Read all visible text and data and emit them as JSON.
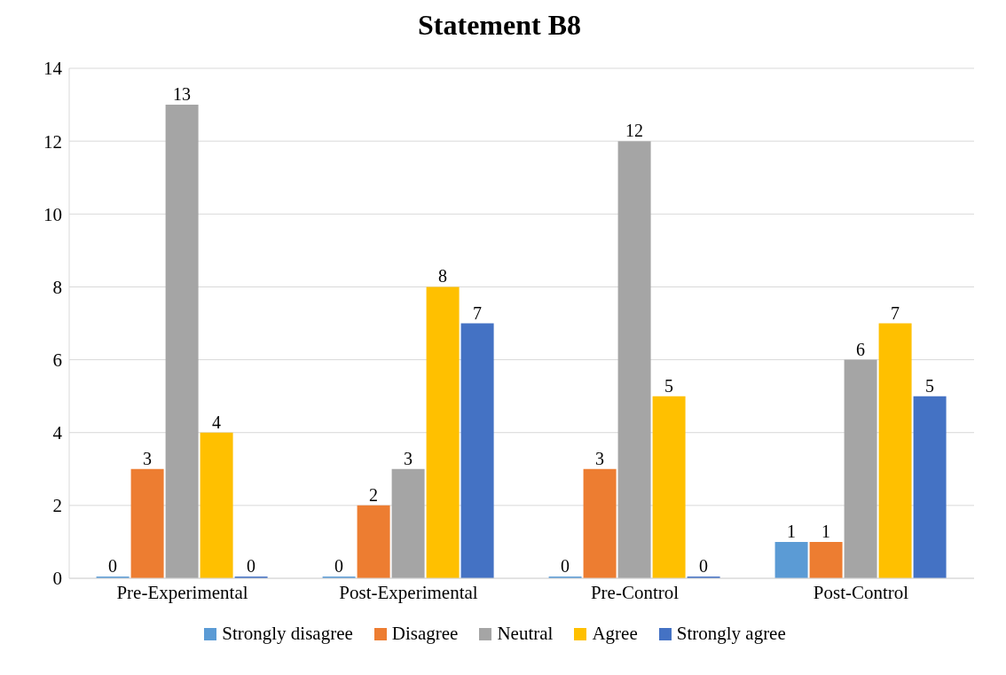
{
  "chart_data": {
    "type": "bar",
    "title": "Statement B8",
    "categories": [
      "Pre-Experimental",
      "Post-Experimental",
      "Pre-Control",
      "Post-Control"
    ],
    "series": [
      {
        "name": "Strongly disagree",
        "color": "#5b9bd5",
        "values": [
          0,
          0,
          0,
          1
        ]
      },
      {
        "name": "Disagree",
        "color": "#ed7d31",
        "values": [
          3,
          2,
          3,
          1
        ]
      },
      {
        "name": "Neutral",
        "color": "#a5a5a5",
        "values": [
          13,
          3,
          12,
          6
        ]
      },
      {
        "name": "Agree",
        "color": "#ffc000",
        "values": [
          4,
          8,
          5,
          7
        ]
      },
      {
        "name": "Strongly agree",
        "color": "#4472c4",
        "values": [
          0,
          7,
          0,
          5
        ]
      }
    ],
    "ylim": [
      0,
      14
    ],
    "yticks": [
      0,
      2,
      4,
      6,
      8,
      10,
      12,
      14
    ],
    "grid": "y",
    "legend": "bottom",
    "data_labels": true
  }
}
